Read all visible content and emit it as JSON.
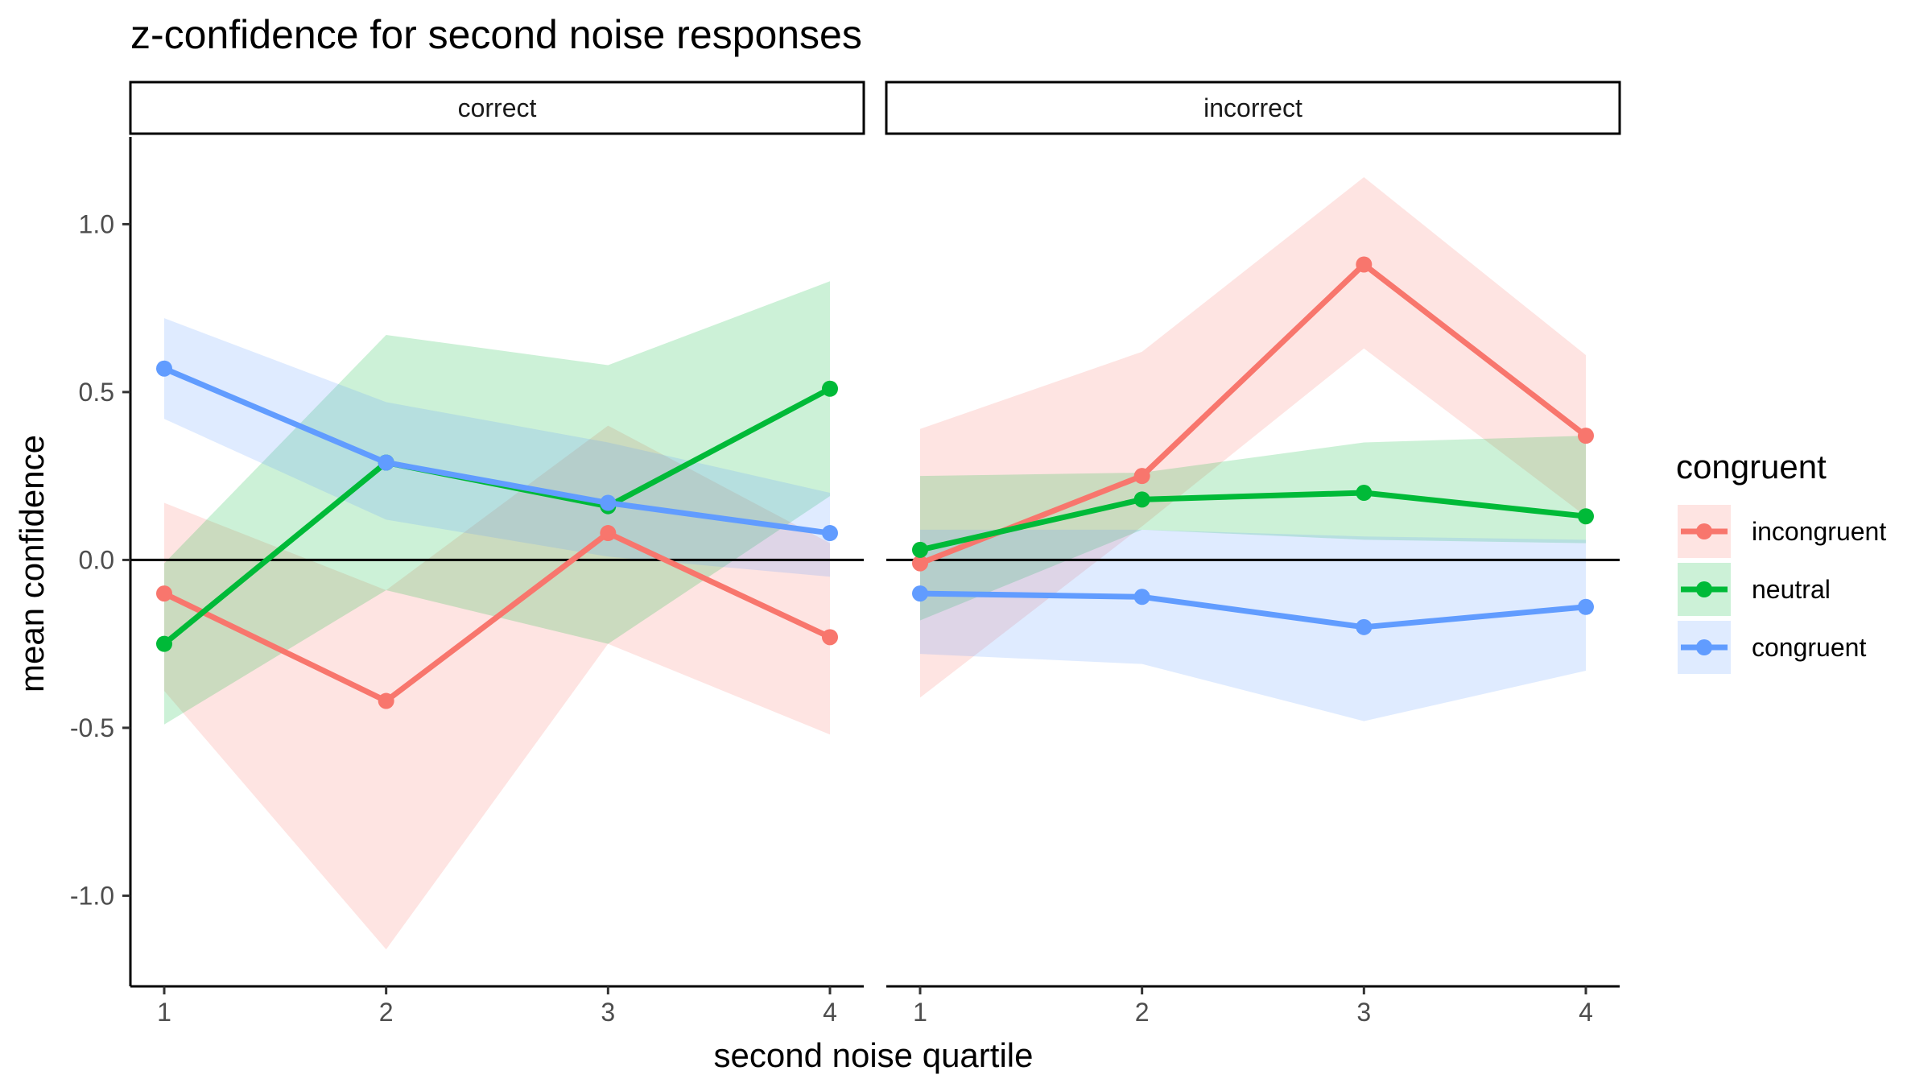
{
  "chart_data": {
    "type": "line",
    "title": "z-confidence for second noise responses",
    "xlabel": "second noise quartile",
    "ylabel": "mean confidence",
    "x": [
      1,
      2,
      3,
      4
    ],
    "x_tick_labels": [
      "1",
      "2",
      "3",
      "4"
    ],
    "y_ticks": [
      -1.0,
      -0.5,
      0.0,
      0.5,
      1.0
    ],
    "y_tick_labels": [
      "-1.0",
      "-0.5",
      "0.0",
      "0.5",
      "1.0"
    ],
    "ylim": [
      -1.27,
      1.26
    ],
    "reference_line_y": 0,
    "grid": false,
    "legend": {
      "title": "congruent",
      "placement": "right",
      "entries": [
        "incongruent",
        "neutral",
        "congruent"
      ]
    },
    "colors": {
      "incongruent": "#F8766D",
      "neutral": "#00BA38",
      "congruent": "#619CFF"
    },
    "facets": [
      {
        "label": "correct",
        "series": [
          {
            "name": "incongruent",
            "values": [
              -0.1,
              -0.42,
              0.08,
              -0.23
            ],
            "lower": [
              -0.39,
              -1.16,
              -0.25,
              -0.52
            ],
            "upper": [
              0.17,
              -0.09,
              0.4,
              0.05
            ]
          },
          {
            "name": "neutral",
            "values": [
              -0.25,
              0.29,
              0.16,
              0.51
            ],
            "lower": [
              -0.49,
              -0.09,
              -0.25,
              0.19
            ],
            "upper": [
              -0.01,
              0.67,
              0.58,
              0.83
            ]
          },
          {
            "name": "congruent",
            "values": [
              0.57,
              0.29,
              0.17,
              0.08
            ],
            "lower": [
              0.42,
              0.12,
              0.01,
              -0.05
            ],
            "upper": [
              0.72,
              0.47,
              0.35,
              0.2
            ]
          }
        ]
      },
      {
        "label": "incorrect",
        "series": [
          {
            "name": "incongruent",
            "values": [
              -0.01,
              0.25,
              0.88,
              0.37
            ],
            "lower": [
              -0.41,
              0.1,
              0.63,
              0.13
            ],
            "upper": [
              0.39,
              0.62,
              1.14,
              0.61
            ]
          },
          {
            "name": "neutral",
            "values": [
              0.03,
              0.18,
              0.2,
              0.13
            ],
            "lower": [
              -0.18,
              0.09,
              0.06,
              0.05
            ],
            "upper": [
              0.25,
              0.26,
              0.35,
              0.37
            ]
          },
          {
            "name": "congruent",
            "values": [
              -0.1,
              -0.11,
              -0.2,
              -0.14
            ],
            "lower": [
              -0.28,
              -0.31,
              -0.48,
              -0.33
            ],
            "upper": [
              0.09,
              0.09,
              0.07,
              0.06
            ]
          }
        ]
      }
    ]
  }
}
